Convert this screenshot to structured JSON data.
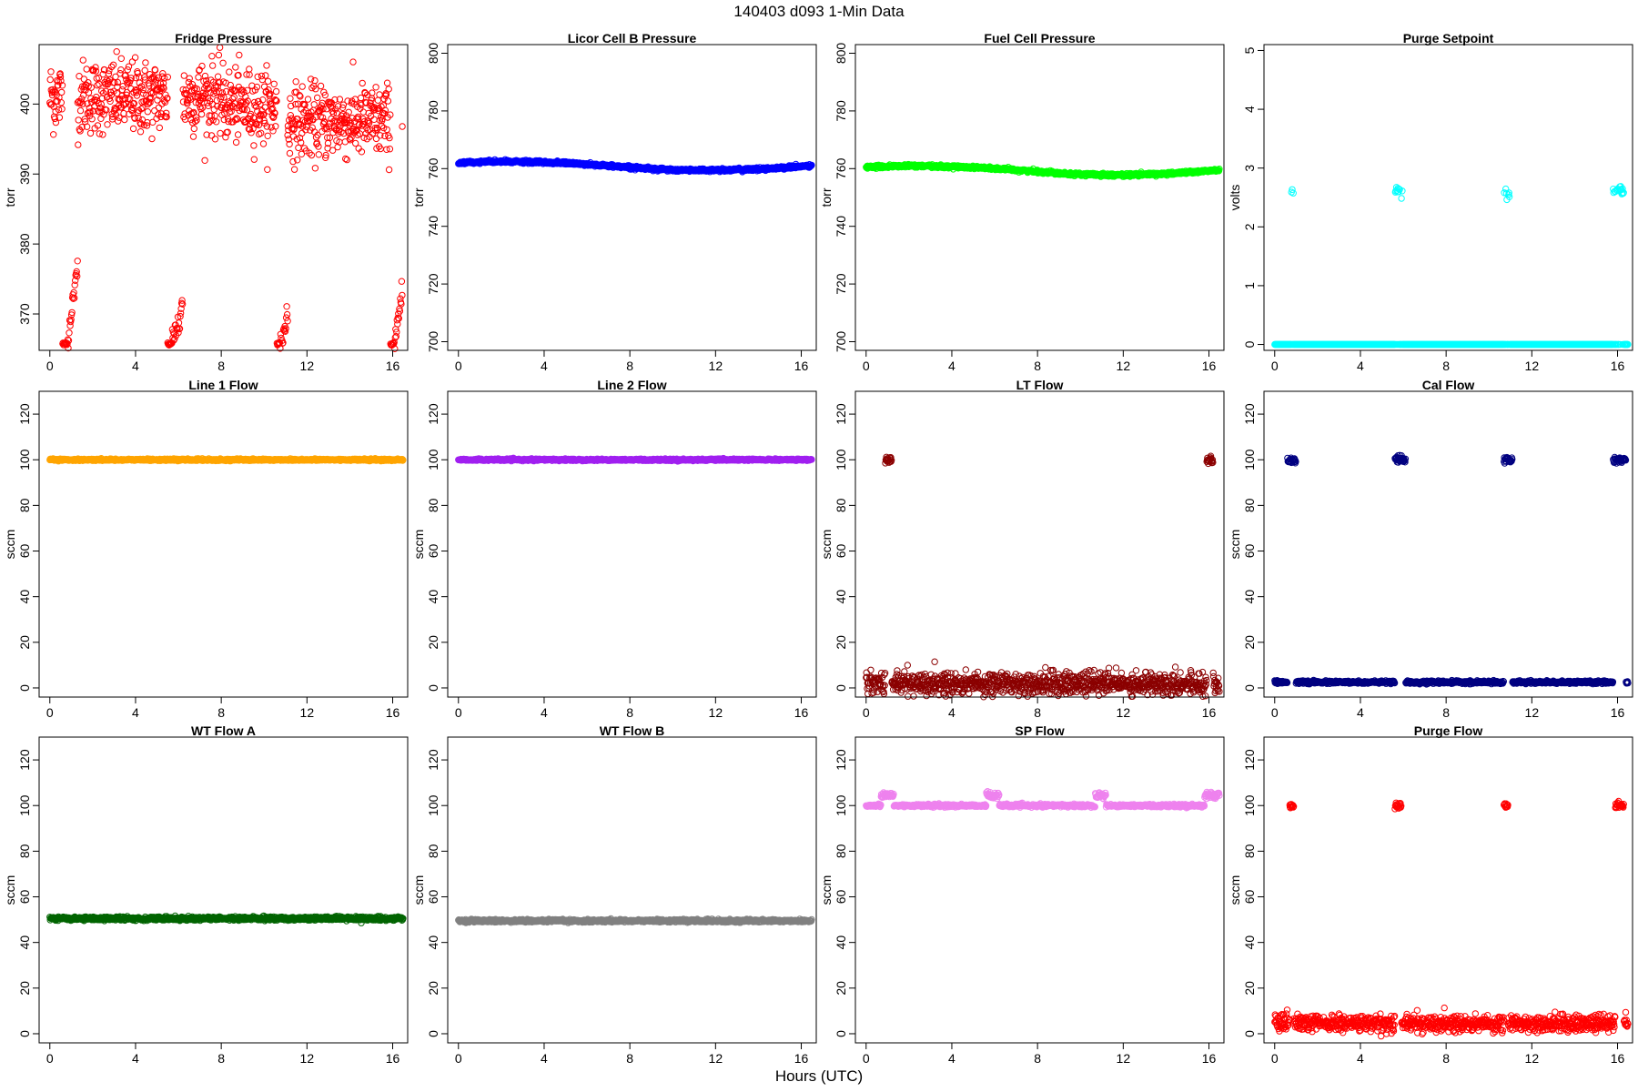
{
  "figure": {
    "title": "140403    d093    1-Min Data",
    "xlabel": "Hours (UTC)"
  },
  "chart_data": [
    {
      "type": "scatter",
      "title": "Fridge Pressure",
      "ylabel": "torr",
      "color": "#ff0000",
      "xlim": [
        -0.5,
        16.7
      ],
      "ylim": [
        364.8,
        408.5
      ],
      "xticks": [
        0,
        4,
        8,
        12,
        16
      ],
      "yticks": [
        370,
        380,
        390,
        400
      ],
      "pattern": "fridge"
    },
    {
      "type": "scatter",
      "title": "Licor Cell B Pressure",
      "ylabel": "torr",
      "color": "#0000ff",
      "xlim": [
        -0.5,
        16.7
      ],
      "ylim": [
        697,
        803
      ],
      "xticks": [
        0,
        4,
        8,
        12,
        16
      ],
      "yticks": [
        700,
        720,
        740,
        760,
        780,
        800
      ],
      "pattern": "smooth",
      "curve": [
        [
          0,
          762
        ],
        [
          2,
          762.5
        ],
        [
          5,
          762
        ],
        [
          8,
          760.5
        ],
        [
          10,
          759.5
        ],
        [
          12,
          759.5
        ],
        [
          14,
          759.8
        ],
        [
          16.5,
          761
        ]
      ]
    },
    {
      "type": "scatter",
      "title": "Fuel Cell Pressure",
      "ylabel": "torr",
      "color": "#00ff00",
      "xlim": [
        -0.5,
        16.7
      ],
      "ylim": [
        697,
        803
      ],
      "xticks": [
        0,
        4,
        8,
        12,
        16
      ],
      "yticks": [
        700,
        720,
        740,
        760,
        780,
        800
      ],
      "pattern": "smooth",
      "curve": [
        [
          0,
          760.5
        ],
        [
          2,
          761
        ],
        [
          5,
          760.5
        ],
        [
          8,
          759
        ],
        [
          10,
          758
        ],
        [
          12,
          757.8
        ],
        [
          14,
          758.2
        ],
        [
          16.5,
          759.5
        ]
      ]
    },
    {
      "type": "scatter",
      "title": "Purge Setpoint",
      "ylabel": "volts",
      "color": "#00ffff",
      "xlim": [
        -0.5,
        16.7
      ],
      "ylim": [
        -0.1,
        5.1
      ],
      "xticks": [
        0,
        4,
        8,
        12,
        16
      ],
      "yticks": [
        0,
        1,
        2,
        3,
        4,
        5
      ],
      "pattern": "setpoint",
      "base": 0,
      "bursts": [
        [
          0.7,
          1.0,
          2.55
        ],
        [
          5.6,
          6.0,
          2.6
        ],
        [
          10.7,
          11.0,
          2.57
        ],
        [
          15.8,
          16.3,
          2.6
        ]
      ]
    },
    {
      "type": "scatter",
      "title": "Line 1 Flow",
      "ylabel": "sccm",
      "color": "#ffa500",
      "xlim": [
        -0.5,
        16.7
      ],
      "ylim": [
        -4,
        130
      ],
      "xticks": [
        0,
        4,
        8,
        12,
        16
      ],
      "yticks": [
        0,
        20,
        40,
        60,
        80,
        100,
        120
      ],
      "pattern": "flat",
      "level": 100,
      "noise": 0.2
    },
    {
      "type": "scatter",
      "title": "Line 2 Flow",
      "ylabel": "sccm",
      "color": "#a020f0",
      "xlim": [
        -0.5,
        16.7
      ],
      "ylim": [
        -4,
        130
      ],
      "xticks": [
        0,
        4,
        8,
        12,
        16
      ],
      "yticks": [
        0,
        20,
        40,
        60,
        80,
        100,
        120
      ],
      "pattern": "flat",
      "level": 100,
      "noise": 0.2
    },
    {
      "type": "scatter",
      "title": "LT Flow",
      "ylabel": "sccm",
      "color": "#8b0000",
      "xlim": [
        -0.5,
        16.7
      ],
      "ylim": [
        -4,
        130
      ],
      "xticks": [
        0,
        4,
        8,
        12,
        16
      ],
      "yticks": [
        0,
        20,
        40,
        60,
        80,
        100,
        120
      ],
      "pattern": "flat",
      "level": 2,
      "noise": 2.5,
      "bursts": [
        [
          0.9,
          1.2,
          100
        ],
        [
          15.9,
          16.2,
          100
        ]
      ]
    },
    {
      "type": "scatter",
      "title": "Cal Flow",
      "ylabel": "sccm",
      "color": "#000080",
      "xlim": [
        -0.5,
        16.7
      ],
      "ylim": [
        -4,
        130
      ],
      "xticks": [
        0,
        4,
        8,
        12,
        16
      ],
      "yticks": [
        0,
        20,
        40,
        60,
        80,
        100,
        120
      ],
      "pattern": "flat",
      "level": 2.5,
      "noise": 0.3,
      "bursts": [
        [
          0.6,
          1.0,
          100
        ],
        [
          5.6,
          6.1,
          100
        ],
        [
          10.7,
          11.1,
          100
        ],
        [
          15.8,
          16.4,
          100
        ]
      ]
    },
    {
      "type": "scatter",
      "title": "WT Flow A",
      "ylabel": "sccm",
      "color": "#006400",
      "xlim": [
        -0.5,
        16.7
      ],
      "ylim": [
        -4,
        130
      ],
      "xticks": [
        0,
        4,
        8,
        12,
        16
      ],
      "yticks": [
        0,
        20,
        40,
        60,
        80,
        100,
        120
      ],
      "pattern": "flat",
      "level": 50.5,
      "noise": 0.4
    },
    {
      "type": "scatter",
      "title": "WT Flow B",
      "ylabel": "sccm",
      "color": "#808080",
      "xlim": [
        -0.5,
        16.7
      ],
      "ylim": [
        -4,
        130
      ],
      "xticks": [
        0,
        4,
        8,
        12,
        16
      ],
      "yticks": [
        0,
        20,
        40,
        60,
        80,
        100,
        120
      ],
      "pattern": "flat",
      "level": 49.5,
      "noise": 0.3
    },
    {
      "type": "scatter",
      "title": "SP Flow",
      "ylabel": "sccm",
      "color": "#ee82ee",
      "xlim": [
        -0.5,
        16.7
      ],
      "ylim": [
        -4,
        130
      ],
      "xticks": [
        0,
        4,
        8,
        12,
        16
      ],
      "yticks": [
        0,
        20,
        40,
        60,
        80,
        100,
        120
      ],
      "pattern": "flat",
      "level": 100,
      "noise": 0.3,
      "bursts": [
        [
          0.7,
          1.3,
          104.5
        ],
        [
          5.6,
          6.2,
          104.5
        ],
        [
          10.7,
          11.2,
          104.5
        ],
        [
          15.8,
          16.5,
          104.5
        ]
      ]
    },
    {
      "type": "scatter",
      "title": "Purge Flow",
      "ylabel": "sccm",
      "color": "#ff0000",
      "xlim": [
        -0.5,
        16.7
      ],
      "ylim": [
        -4,
        130
      ],
      "xticks": [
        0,
        4,
        8,
        12,
        16
      ],
      "yticks": [
        0,
        20,
        40,
        60,
        80,
        100,
        120
      ],
      "pattern": "flat",
      "level": 4.5,
      "noise": 1.8,
      "bursts": [
        [
          0.7,
          0.9,
          100
        ],
        [
          5.6,
          5.9,
          100
        ],
        [
          10.7,
          10.9,
          100
        ],
        [
          15.9,
          16.3,
          100
        ]
      ]
    }
  ]
}
